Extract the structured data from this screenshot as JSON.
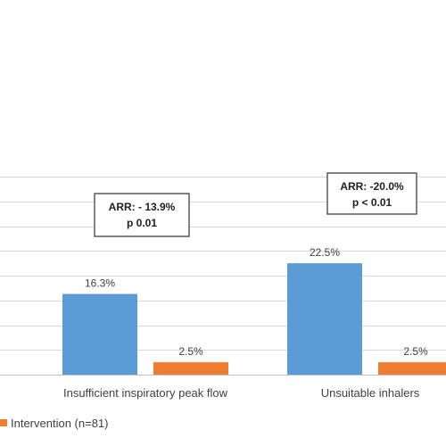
{
  "chart_data": {
    "type": "bar",
    "categories": [
      "Insufficient inspiratory peak flow",
      "Unsuitable inhalers"
    ],
    "series": [
      {
        "name": "",
        "color": "#5b9bd5",
        "values": [
          16.3,
          22.5
        ],
        "labels": [
          "16.3%",
          "22.5%"
        ]
      },
      {
        "name": "Intervention (n=81)",
        "color": "#ed7d31",
        "values": [
          2.5,
          2.5
        ],
        "labels": [
          "2.5%",
          "2.5%"
        ]
      }
    ],
    "ylim": [
      0,
      40
    ],
    "grid": true,
    "legend_position": "bottom",
    "annotations": [
      {
        "lines": [
          "ARR: - 13.9%",
          "p  0.01"
        ]
      },
      {
        "lines": [
          "ARR: -20.0%",
          "p < 0.01"
        ]
      }
    ]
  }
}
